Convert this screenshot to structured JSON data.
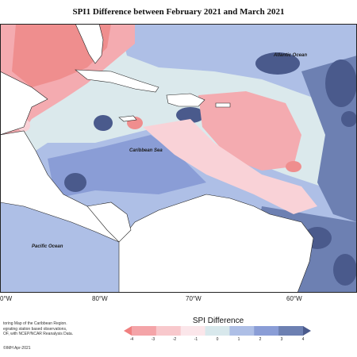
{
  "title": "SPI1 Difference between February 2021 and March 2021",
  "labels": {
    "atlantic": "Atlantic Ocean",
    "caribbean": "Caribbean Sea",
    "pacific": "Pacific Ocean"
  },
  "longitudes": [
    "0°W",
    "80°W",
    "70°W",
    "60°W"
  ],
  "credit_lines": [
    "toring Map of the Caribbean Region.",
    "egrating station based observations,",
    "OF, with NCEP/NCAR Reanalysis Data."
  ],
  "copyright": "©IMH Apr-2021",
  "legend": {
    "title": "SPI Difference",
    "ticks": [
      "-4",
      "-3",
      "-2",
      "-1",
      "0",
      "1",
      "2",
      "3",
      "4"
    ],
    "colors": [
      "#f08080",
      "#f4a4a8",
      "#f8c8cc",
      "#fbe6ea",
      "#d8e8ec",
      "#aebfe6",
      "#8a9dd6",
      "#6d80b2",
      "#4a5a8c"
    ]
  },
  "colors": {
    "strong_red": "#ef8e8e",
    "red": "#f4abb0",
    "light_red": "#f9d2d7",
    "neutral": "#dbe9ec",
    "light_blue": "#aebfe6",
    "blue": "#8a9dd6",
    "slate": "#6d80b2",
    "dark": "#4a5a8c",
    "land": "#ffffff"
  }
}
